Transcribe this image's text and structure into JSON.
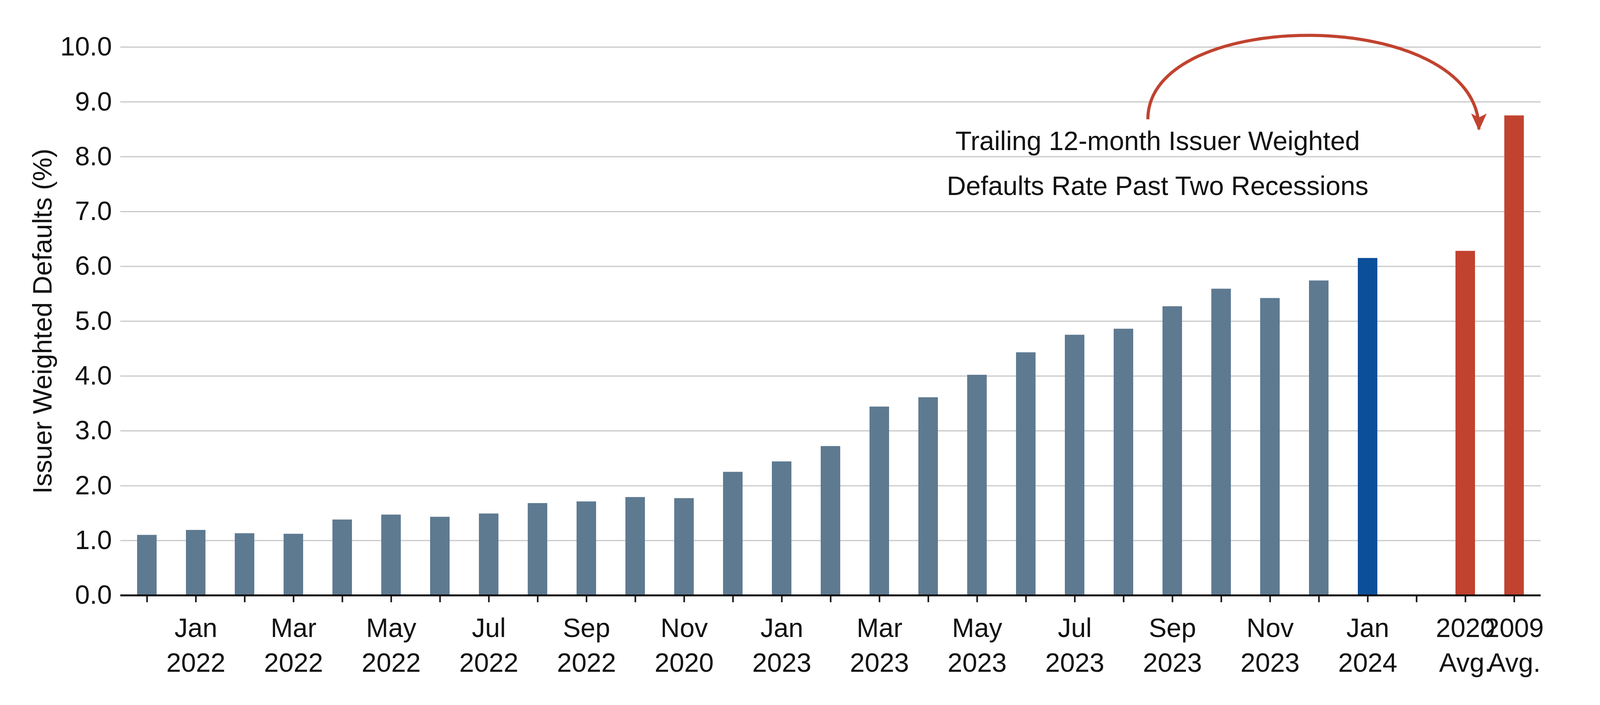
{
  "chart_data": {
    "type": "bar",
    "y_label": "Issuer Weighted Defaults (%)",
    "annotation": "Trailing 12-month Issuer Weighted\nDefaults Rate Past Two Recessions",
    "categories": [
      null,
      "Jan 2022",
      null,
      "Mar 2022",
      null,
      "May 2022",
      null,
      "Jul 2022",
      null,
      "Sep 2022",
      null,
      "Nov 2020",
      null,
      "Jan 2023",
      null,
      "Mar 2023",
      null,
      "May 2023",
      null,
      "Jul 2023",
      null,
      "Sep 2023",
      null,
      "Nov 2023",
      null,
      "Jan 2024",
      null,
      "2020 Avg.",
      "2009 Avg."
    ],
    "values": [
      1.1,
      1.19,
      1.13,
      1.12,
      1.38,
      1.47,
      1.43,
      1.49,
      1.68,
      1.71,
      1.79,
      1.77,
      2.25,
      2.44,
      2.72,
      3.44,
      3.61,
      4.02,
      4.43,
      4.75,
      4.86,
      5.27,
      5.59,
      5.42,
      5.74,
      6.15,
      null,
      6.28,
      8.75
    ],
    "colors": [
      "#5e7a91",
      "#5e7a91",
      "#5e7a91",
      "#5e7a91",
      "#5e7a91",
      "#5e7a91",
      "#5e7a91",
      "#5e7a91",
      "#5e7a91",
      "#5e7a91",
      "#5e7a91",
      "#5e7a91",
      "#5e7a91",
      "#5e7a91",
      "#5e7a91",
      "#5e7a91",
      "#5e7a91",
      "#5e7a91",
      "#5e7a91",
      "#5e7a91",
      "#5e7a91",
      "#5e7a91",
      "#5e7a91",
      "#5e7a91",
      "#5e7a91",
      "#0b4f9b",
      null,
      "#c1432f",
      "#c1432f"
    ],
    "ylim": [
      0,
      10
    ],
    "yticks": [
      {
        "value": 0,
        "label": "0.0"
      },
      {
        "value": 1,
        "label": "1.0"
      },
      {
        "value": 2,
        "label": "2.0"
      },
      {
        "value": 3,
        "label": "3.0"
      },
      {
        "value": 4,
        "label": "4.0"
      },
      {
        "value": 5,
        "label": "5.0"
      },
      {
        "value": 6,
        "label": "6.0"
      },
      {
        "value": 7,
        "label": "7.0"
      },
      {
        "value": 8,
        "label": "8.0"
      },
      {
        "value": 9,
        "label": "9.0"
      },
      {
        "value": 10,
        "label": "10.0"
      }
    ],
    "grid": true
  }
}
